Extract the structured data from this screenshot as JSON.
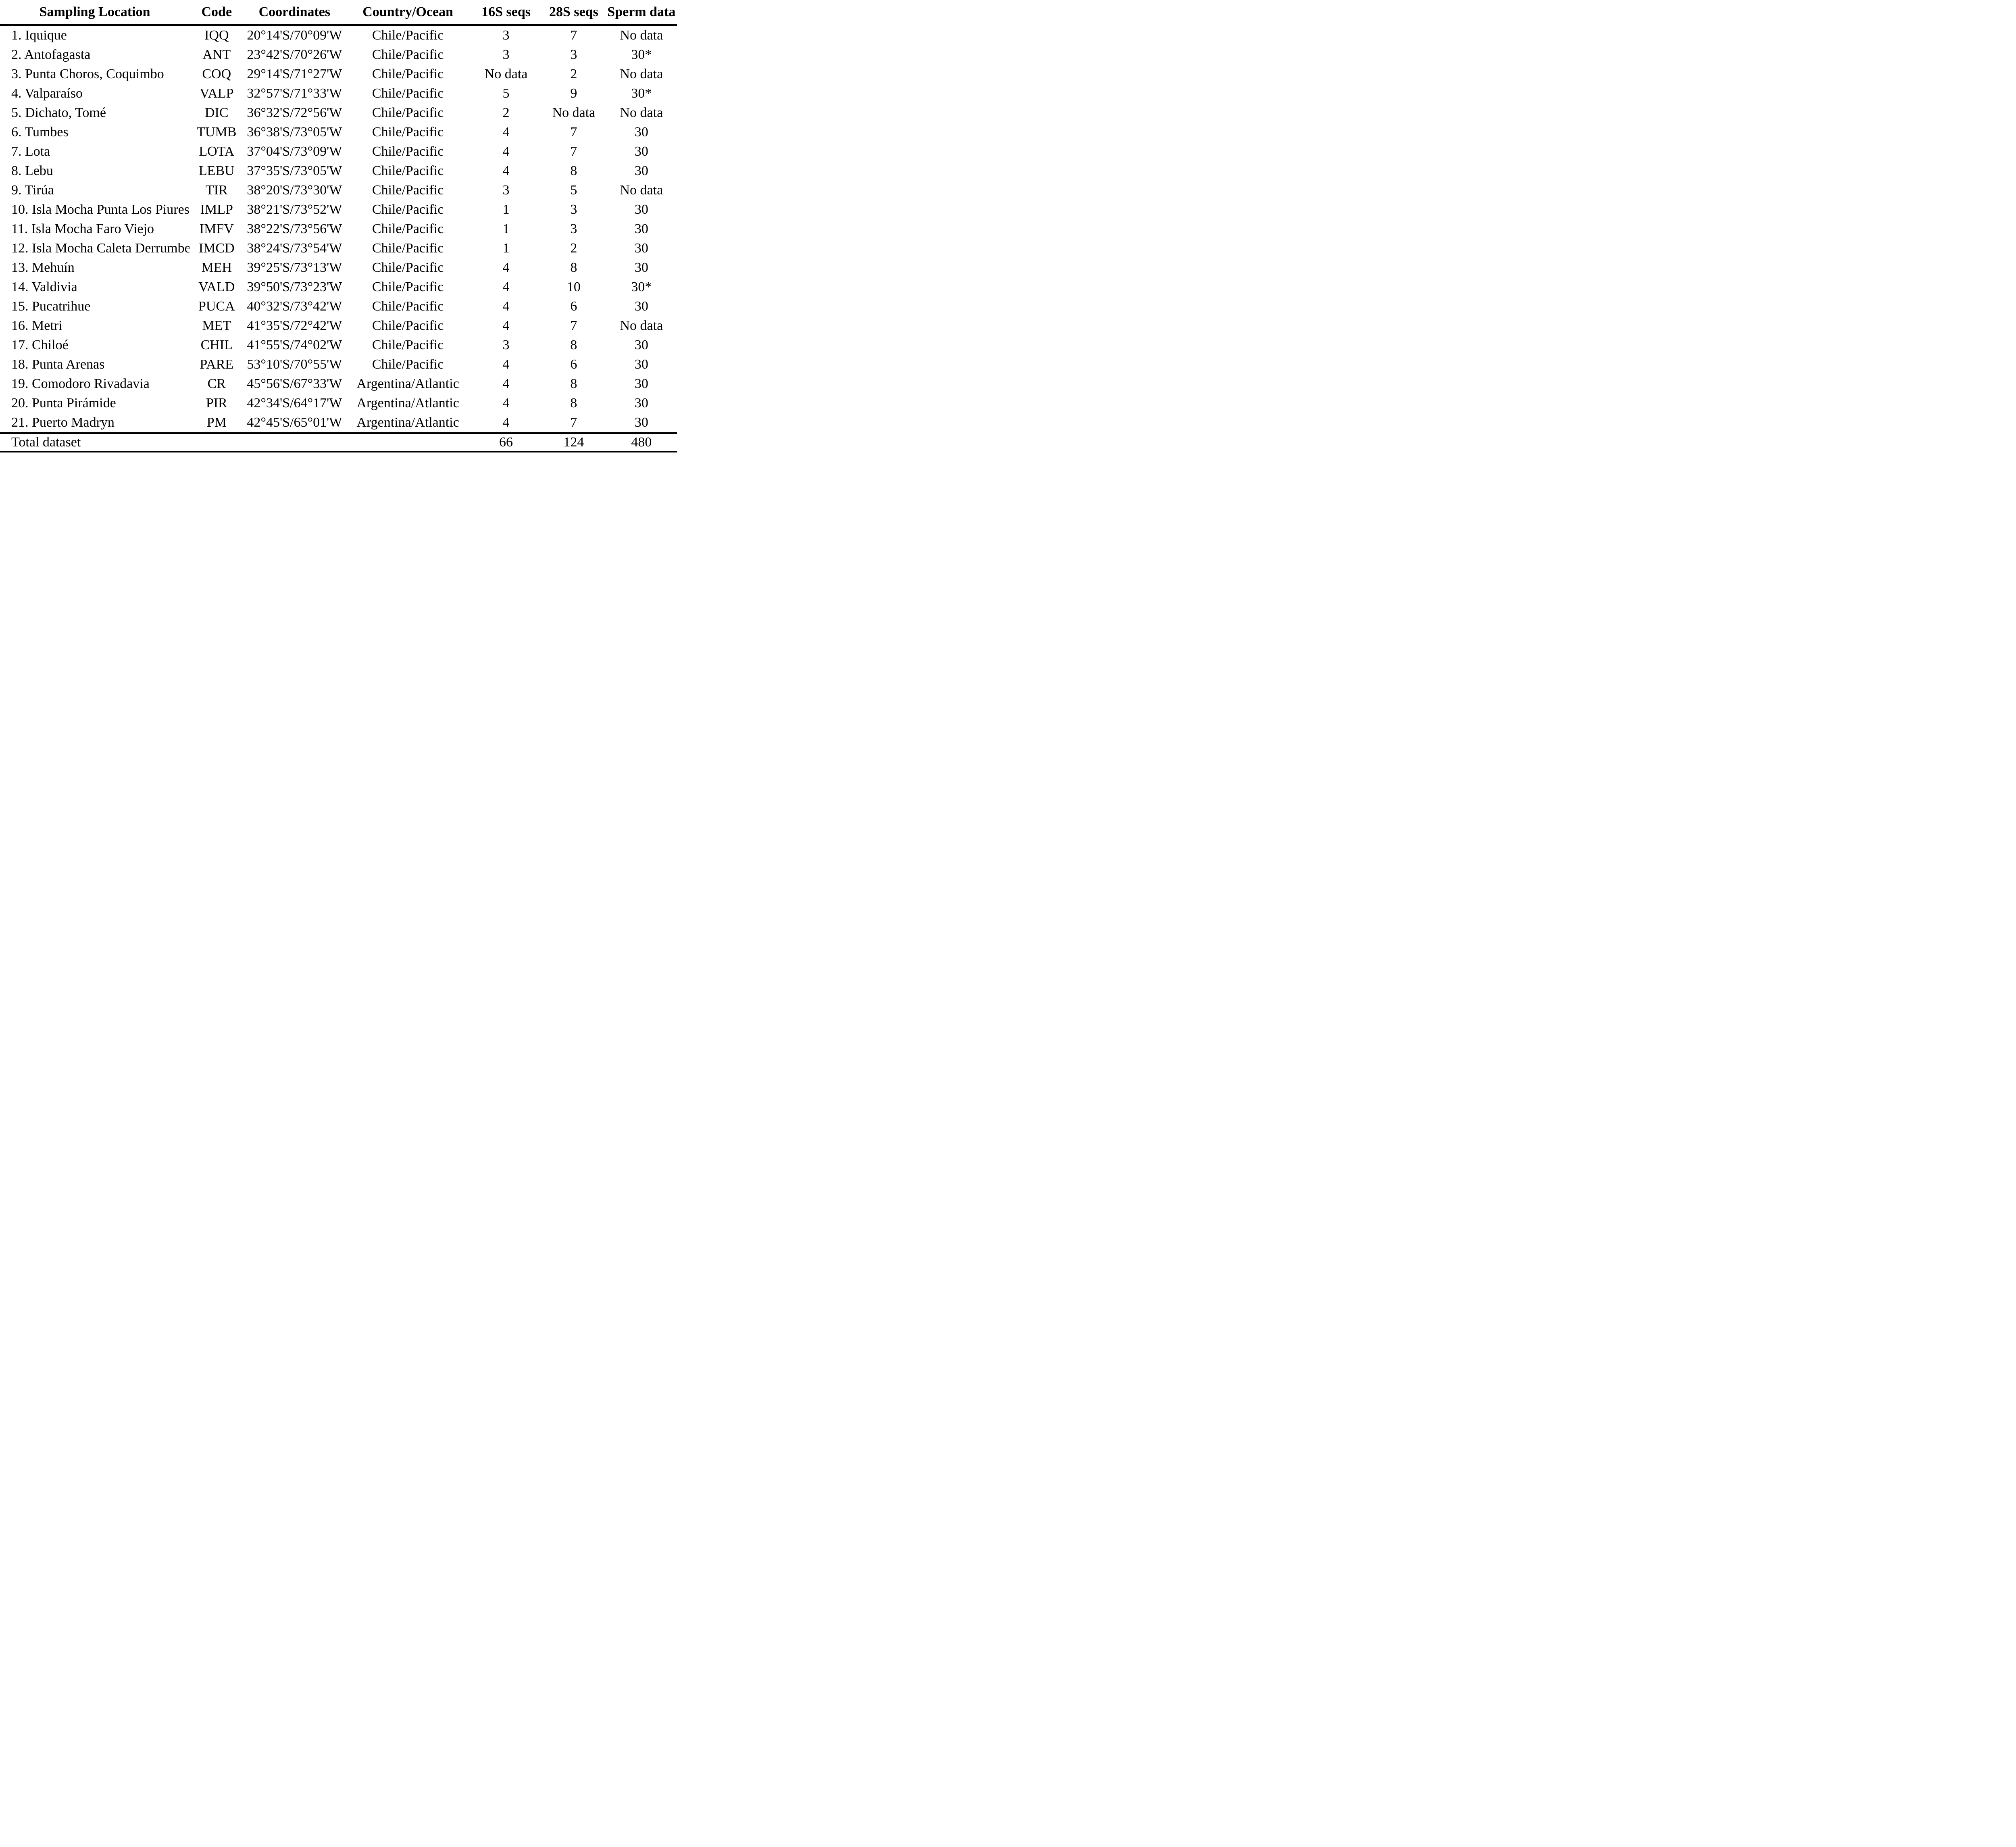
{
  "table": {
    "columns": [
      "Sampling Location",
      "Code",
      "Coordinates",
      "Country/Ocean",
      "16S seqs",
      "28S seqs",
      "Sperm data"
    ],
    "column_keys": [
      "sampling-location",
      "code",
      "coordinates",
      "country-ocean",
      "16s-seqs",
      "28s-seqs",
      "sperm-data"
    ],
    "rows": [
      [
        "1. Iquique",
        "IQQ",
        "20°14'S/70°09'W",
        "Chile/Pacific",
        "3",
        "7",
        "No data"
      ],
      [
        "2. Antofagasta",
        "ANT",
        "23°42'S/70°26'W",
        "Chile/Pacific",
        "3",
        "3",
        "30*"
      ],
      [
        "3. Punta Choros, Coquimbo",
        "COQ",
        "29°14'S/71°27'W",
        "Chile/Pacific",
        "No data",
        "2",
        "No data"
      ],
      [
        "4. Valparaíso",
        "VALP",
        "32°57'S/71°33'W",
        "Chile/Pacific",
        "5",
        "9",
        "30*"
      ],
      [
        "5. Dichato, Tomé",
        "DIC",
        "36°32'S/72°56'W",
        "Chile/Pacific",
        "2",
        "No data",
        "No data"
      ],
      [
        "6. Tumbes",
        "TUMB",
        "36°38'S/73°05'W",
        "Chile/Pacific",
        "4",
        "7",
        "30"
      ],
      [
        "7. Lota",
        "LOTA",
        "37°04'S/73°09'W",
        "Chile/Pacific",
        "4",
        "7",
        "30"
      ],
      [
        "8. Lebu",
        "LEBU",
        "37°35'S/73°05'W",
        "Chile/Pacific",
        "4",
        "8",
        "30"
      ],
      [
        "9. Tirúa",
        "TIR",
        "38°20'S/73°30'W",
        "Chile/Pacific",
        "3",
        "5",
        "No data"
      ],
      [
        "10. Isla Mocha Punta Los Piures",
        "IMLP",
        "38°21'S/73°52'W",
        "Chile/Pacific",
        "1",
        "3",
        "30"
      ],
      [
        "11. Isla Mocha Faro Viejo",
        "IMFV",
        "38°22'S/73°56'W",
        "Chile/Pacific",
        "1",
        "3",
        "30"
      ],
      [
        "12. Isla Mocha Caleta Derrumbe",
        "IMCD",
        "38°24'S/73°54'W",
        "Chile/Pacific",
        "1",
        "2",
        "30"
      ],
      [
        "13. Mehuín",
        "MEH",
        "39°25'S/73°13'W",
        "Chile/Pacific",
        "4",
        "8",
        "30"
      ],
      [
        "14. Valdivia",
        "VALD",
        "39°50'S/73°23'W",
        "Chile/Pacific",
        "4",
        "10",
        "30*"
      ],
      [
        "15. Pucatrihue",
        "PUCA",
        "40°32'S/73°42'W",
        "Chile/Pacific",
        "4",
        "6",
        "30"
      ],
      [
        "16. Metri",
        "MET",
        "41°35'S/72°42'W",
        "Chile/Pacific",
        "4",
        "7",
        "No data"
      ],
      [
        "17. Chiloé",
        "CHIL",
        "41°55'S/74°02'W",
        "Chile/Pacific",
        "3",
        "8",
        "30"
      ],
      [
        "18. Punta Arenas",
        "PARE",
        "53°10'S/70°55'W",
        "Chile/Pacific",
        "4",
        "6",
        "30"
      ],
      [
        "19. Comodoro Rivadavia",
        "CR",
        "45°56'S/67°33'W",
        "Argentina/Atlantic",
        "4",
        "8",
        "30"
      ],
      [
        "20. Punta Pirámide",
        "PIR",
        "42°34'S/64°17'W",
        "Argentina/Atlantic",
        "4",
        "8",
        "30"
      ],
      [
        "21. Puerto Madryn",
        "PM",
        "42°45'S/65°01'W",
        "Argentina/Atlantic",
        "4",
        "7",
        "30"
      ]
    ],
    "total_label": "Total dataset",
    "totals": [
      "66",
      "124",
      "480"
    ]
  },
  "colors": {
    "text": "#000000",
    "background": "#ffffff",
    "rule": "#000000"
  }
}
